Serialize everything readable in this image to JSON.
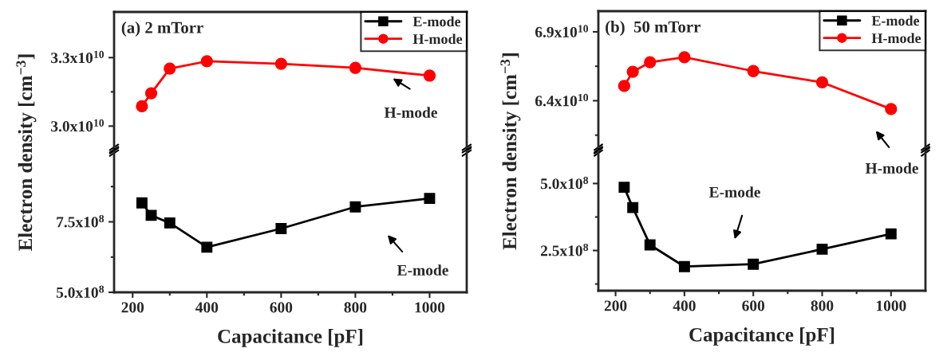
{
  "chart_data": [
    {
      "type": "line",
      "annotations": [
        "(a) 2 mTorr",
        "H-mode"
      ],
      "ylabel": "Electron density [cm$^{−3}$]",
      "legend": "top right",
      "tick_labels": "y",
      "grid": false,
      "xlim": [
        150,
        1100
      ],
      "ylim": [
        29000000000.0,
        35000000000.0
      ],
      "yticks": [
        {
          "value": 30000000000.0,
          "label": "3.0x10$^{10}$"
        },
        {
          "value": 31500000000.0,
          "label": null
        },
        {
          "value": 33000000000.0,
          "label": "3.3x10$^{10}$"
        }
      ],
      "series": [
        {
          "name": "H-mode",
          "color": "#ff0000",
          "marker": "circle",
          "x": [
            225,
            250,
            300,
            400,
            600,
            800,
            1000
          ],
          "values": [
            30870000000.0,
            31440000000.0,
            32520000000.0,
            32840000000.0,
            32730000000.0,
            32550000000.0,
            32210000000.0
          ]
        }
      ]
    },
    {
      "type": "line",
      "annotations": [
        "E-mode"
      ],
      "xlabel": "Capacitance [pF]",
      "grid": false,
      "xlim": [
        150,
        1100
      ],
      "xticks": [
        200,
        {
          "value": 300,
          "label": null
        },
        400,
        {
          "value": 500,
          "label": null
        },
        600,
        {
          "value": 700,
          "label": null
        },
        800,
        {
          "value": 900,
          "label": null
        },
        1000
      ],
      "ylim": [
        500000000.0,
        1000000000.0
      ],
      "yticks": [
        {
          "value": 500000000.0,
          "label": "5.0x10$^{8}$"
        },
        {
          "value": 625000000.0,
          "label": null
        },
        {
          "value": 750000000.0,
          "label": "7.5x10$^{8}$"
        },
        {
          "value": 875000000.0,
          "label": null
        }
      ],
      "series": [
        {
          "name": "E-mode",
          "color": "#000000",
          "marker": "square",
          "x": [
            225,
            250,
            300,
            400,
            600,
            800,
            1000
          ],
          "values": [
            817000000.0,
            773000000.0,
            746000000.0,
            660000000.0,
            726000000.0,
            803000000.0,
            833000000.0
          ]
        }
      ]
    },
    {
      "type": "line",
      "annotations": [
        "(b)  50 mTorr",
        "H-mode"
      ],
      "ylabel": "Electron density [cm$^{−3}$]",
      "legend": "top right",
      "tick_labels": "y",
      "grid": false,
      "xlim": [
        150,
        1100
      ],
      "ylim": [
        60500000000.0,
        70500000000.0
      ],
      "yticks": [
        {
          "value": 61500000000.0,
          "label": null
        },
        {
          "value": 64000000000.0,
          "label": "6.4x10$^{10}$"
        },
        {
          "value": 66500000000.0,
          "label": null
        },
        {
          "value": 69000000000.0,
          "label": "6.9x10$^{10}$"
        }
      ],
      "series": [
        {
          "name": "H-mode",
          "color": "#ff0000",
          "marker": "circle",
          "x": [
            225,
            250,
            300,
            400,
            600,
            800,
            1000
          ],
          "values": [
            65070000000.0,
            66100000000.0,
            66790000000.0,
            67150000000.0,
            66150000000.0,
            65330000000.0,
            63400000000.0
          ]
        }
      ]
    },
    {
      "type": "line",
      "annotations": [
        "E-mode"
      ],
      "xlabel": "Capacitance [pF]",
      "grid": false,
      "xlim": [
        150,
        1100
      ],
      "xticks": [
        200,
        {
          "value": 300,
          "label": null
        },
        400,
        {
          "value": 500,
          "label": null
        },
        600,
        {
          "value": 700,
          "label": null
        },
        800,
        {
          "value": 900,
          "label": null
        },
        1000
      ],
      "ylim": [
        100000000.0,
        620000000.0
      ],
      "yticks": [
        {
          "value": 125000000.0,
          "label": null
        },
        {
          "value": 250000000.0,
          "label": "2.5x10$^{8}$"
        },
        {
          "value": 375000000.0,
          "label": null
        },
        {
          "value": 500000000.0,
          "label": "5.0x10$^{8}$"
        }
      ],
      "series": [
        {
          "name": "E-mode",
          "color": "#000000",
          "marker": "square",
          "x": [
            225,
            250,
            300,
            400,
            600,
            800,
            1000
          ],
          "values": [
            486000000.0,
            410000000.0,
            271000000.0,
            190000000.0,
            199000000.0,
            255000000.0,
            312000000.0
          ]
        }
      ]
    }
  ]
}
